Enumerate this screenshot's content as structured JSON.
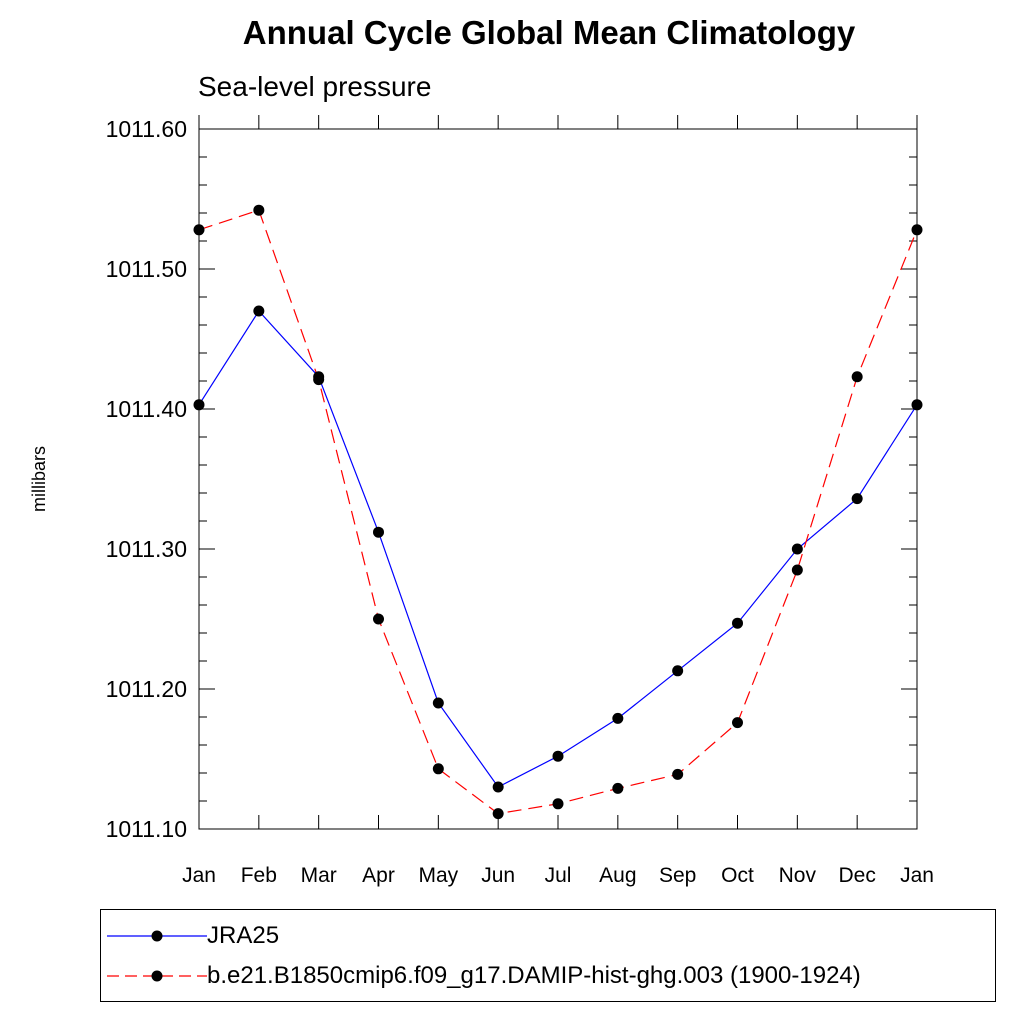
{
  "chart_data": {
    "type": "line",
    "title": "Annual Cycle Global Mean Climatology",
    "subtitle": "Sea-level pressure",
    "ylabel": "millibars",
    "xlabel": "",
    "categories": [
      "Jan",
      "Feb",
      "Mar",
      "Apr",
      "May",
      "Jun",
      "Jul",
      "Aug",
      "Sep",
      "Oct",
      "Nov",
      "Dec",
      "Jan"
    ],
    "ylim": [
      1011.1,
      1011.6
    ],
    "yticks": [
      "1011.10",
      "1011.20",
      "1011.30",
      "1011.40",
      "1011.50",
      "1011.60"
    ],
    "series": [
      {
        "name": "JRA25",
        "color": "#0000ff",
        "dash": "solid",
        "values": [
          1011.403,
          1011.47,
          1011.423,
          1011.312,
          1011.19,
          1011.13,
          1011.152,
          1011.179,
          1011.213,
          1011.247,
          1011.3,
          1011.336,
          1011.403
        ]
      },
      {
        "name": "b.e21.B1850cmip6.f09_g17.DAMIP-hist-ghg.003 (1900-1924)",
        "color": "#ff0000",
        "dash": "dashed",
        "values": [
          1011.528,
          1011.542,
          1011.421,
          1011.25,
          1011.143,
          1011.111,
          1011.118,
          1011.129,
          1011.139,
          1011.176,
          1011.285,
          1011.423,
          1011.528
        ]
      }
    ]
  }
}
